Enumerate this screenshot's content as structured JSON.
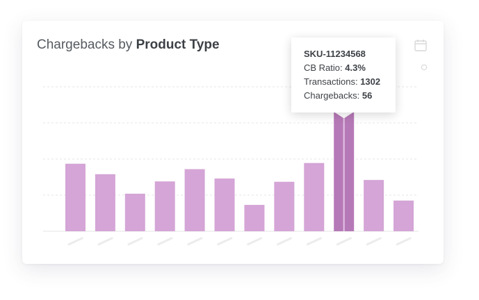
{
  "header": {
    "title_prefix": "Chargebacks by",
    "title_bold": "Product Type"
  },
  "icons": {
    "calendar": "calendar-icon",
    "settings": "dot-icon"
  },
  "colors": {
    "bar": "#d4a5d6",
    "bar_highlight": "#b679b7",
    "grid": "#e6e6e6"
  },
  "tooltip": {
    "sku": "SKU-11234568",
    "cb_ratio_label": "CB Ratio:",
    "cb_ratio_value": "4.3%",
    "transactions_label": "Transactions:",
    "transactions_value": "1302",
    "chargebacks_label": "Chargebacks:",
    "chargebacks_value": "56"
  },
  "chart_data": {
    "type": "bar",
    "ylim": [
      0,
      400
    ],
    "grid": true,
    "highlight_index": 9,
    "values": [
      187,
      158,
      104,
      138,
      172,
      146,
      73,
      137,
      189,
      330,
      142,
      85
    ]
  }
}
